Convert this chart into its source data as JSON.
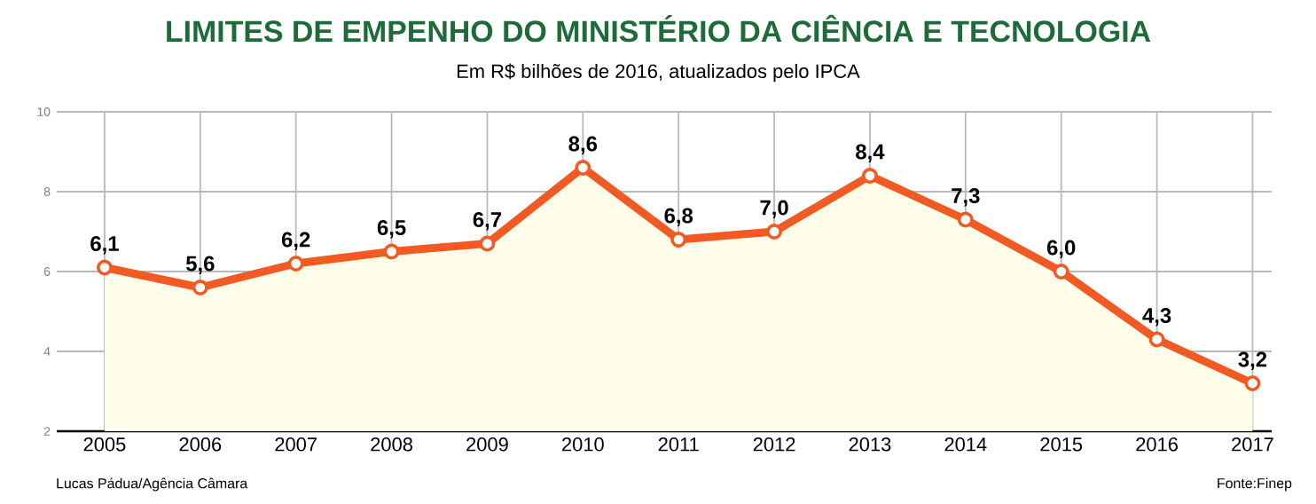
{
  "chart_data": {
    "type": "area",
    "title": "LIMITES DE EMPENHO DO MINISTÉRIO DA CIÊNCIA E TECNOLOGIA",
    "subtitle": "Em R$ bilhões de 2016, atualizados pelo IPCA",
    "categories": [
      "2005",
      "2006",
      "2007",
      "2008",
      "2009",
      "2010",
      "2011",
      "2012",
      "2013",
      "2014",
      "2015",
      "2016",
      "2017"
    ],
    "series": [
      {
        "color": "#f15a22",
        "values": [
          6.1,
          5.6,
          6.2,
          6.5,
          6.7,
          8.6,
          6.8,
          7.0,
          8.4,
          7.3,
          6.0,
          4.3,
          3.2
        ],
        "value_labels": [
          "6,1",
          "5,6",
          "6,2",
          "6,5",
          "6,7",
          "8,6",
          "6,8",
          "7,0",
          "8,4",
          "7,3",
          "6,0",
          "4,3",
          "3,2"
        ]
      }
    ],
    "ylim": [
      2,
      10
    ],
    "yticks": [
      2,
      4,
      6,
      8,
      10
    ],
    "grid": true,
    "marker": "circle",
    "annotations": [
      "Lucas Pádua/Agência Câmara",
      "Fonte:Finep"
    ]
  }
}
